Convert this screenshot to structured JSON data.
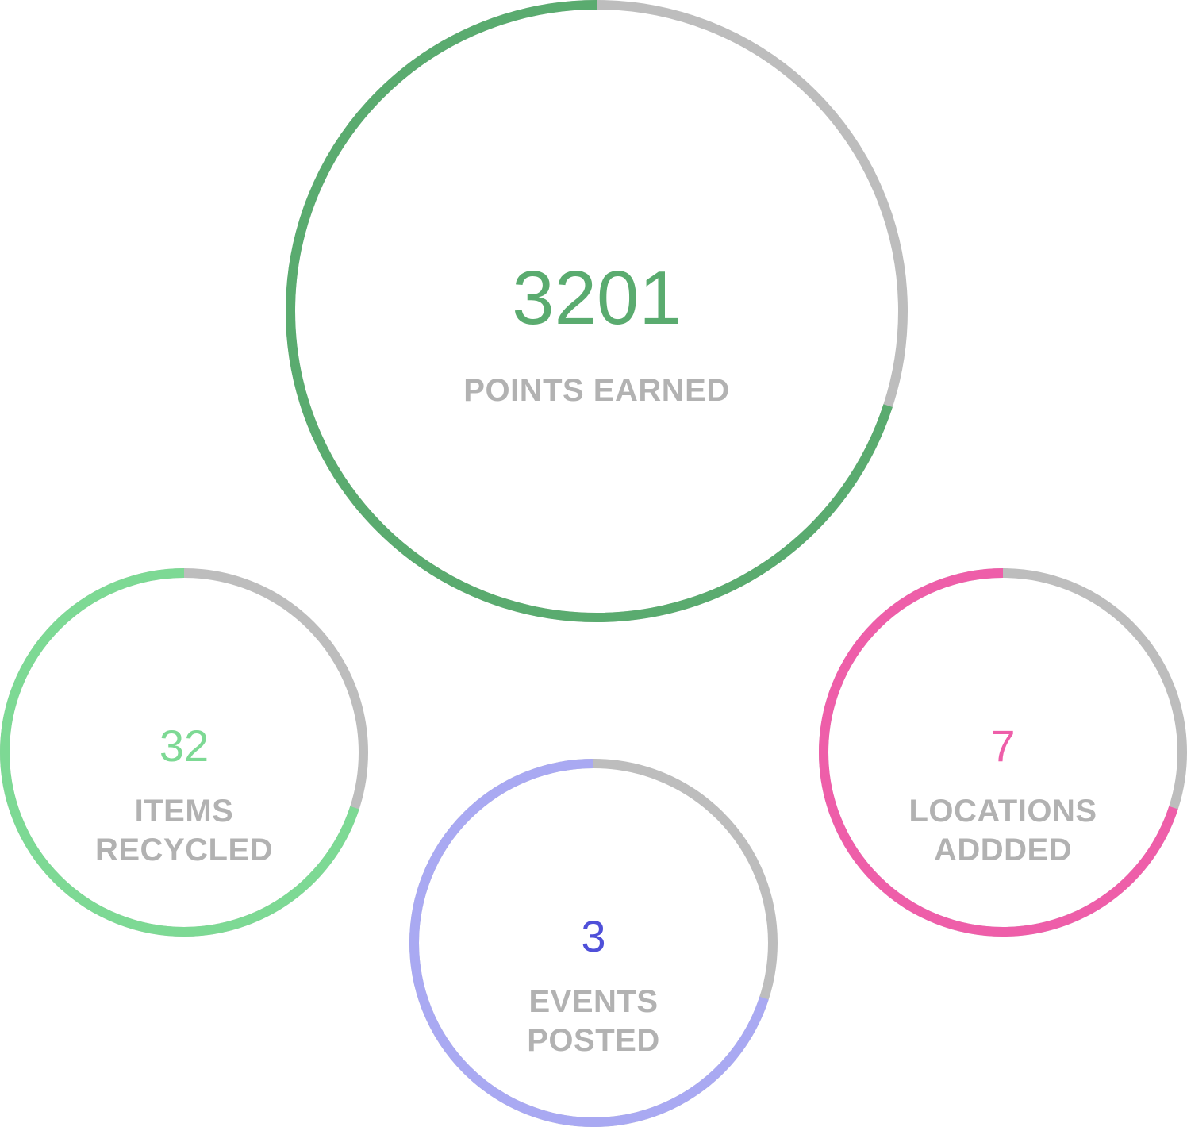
{
  "stats": [
    {
      "id": "points",
      "value": "3201",
      "label": "POINTS EARNED",
      "color": "#5aab6f",
      "track_color": "#bdbdbd",
      "progress": 0.7
    },
    {
      "id": "items",
      "value": "32",
      "label": "ITEMS RECYCLED",
      "color": "#7dd994",
      "track_color": "#bdbdbd",
      "progress": 0.7
    },
    {
      "id": "events",
      "value": "3",
      "label": "EVENTS POSTED",
      "color": "#a9a9f2",
      "value_color": "#4f50d9",
      "track_color": "#bdbdbd",
      "progress": 0.7
    },
    {
      "id": "locations",
      "value": "7",
      "label": "LOCATIONS ADDDED",
      "color": "#ee5ea9",
      "track_color": "#bdbdbd",
      "progress": 0.7
    }
  ]
}
